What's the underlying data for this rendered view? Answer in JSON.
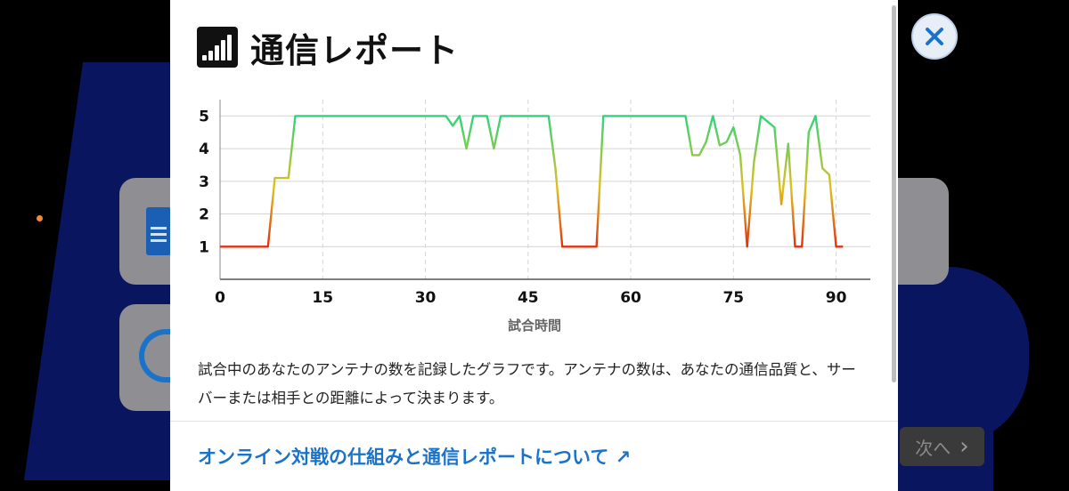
{
  "modal": {
    "title": "通信レポート",
    "title_icon": "signal-bars-icon",
    "description": "試合中のあなたのアンテナの数を記録したグラフです。アンテナの数は、あなたの通信品質と、サーバーまたは相手との距離によって決まります。",
    "help_link": "オンライン対戦の仕組みと通信レポートについて ↗",
    "close_icon": "close-icon"
  },
  "background": {
    "next_button_label": "次へ",
    "next_icon": "chevron-right-icon"
  },
  "colors": {
    "high": "#2ed47a",
    "mid": "#e0c020",
    "low": "#e03010",
    "accent": "#1a73c9"
  },
  "chart_data": {
    "type": "line",
    "xlabel": "試合時間",
    "ylabel": "",
    "xlim": [
      0,
      95
    ],
    "ylim": [
      0,
      5.5
    ],
    "x_ticks": [
      0,
      15,
      30,
      45,
      60,
      75,
      90
    ],
    "y_ticks": [
      1,
      2,
      3,
      4,
      5
    ],
    "grid": true,
    "series": [
      {
        "x": [
          0,
          7,
          8,
          10,
          11,
          33,
          34,
          35,
          36,
          37,
          39,
          40,
          41,
          48,
          49,
          50,
          55,
          56,
          68,
          69,
          70,
          71,
          72,
          73,
          74,
          75,
          76,
          77,
          78,
          79,
          81,
          82,
          83,
          84,
          85,
          86,
          87,
          88,
          89,
          90,
          91
        ],
        "y": [
          1,
          1,
          3.1,
          3.1,
          5,
          5,
          4.7,
          5,
          4,
          5,
          5,
          4,
          5,
          5,
          3.4,
          1,
          1,
          5,
          5,
          3.8,
          3.8,
          4.2,
          5,
          4.1,
          4.2,
          4.65,
          3.8,
          1,
          3.6,
          5,
          4.65,
          2.3,
          4.15,
          1,
          1,
          4.5,
          5,
          3.4,
          3.2,
          1,
          1
        ]
      }
    ]
  }
}
